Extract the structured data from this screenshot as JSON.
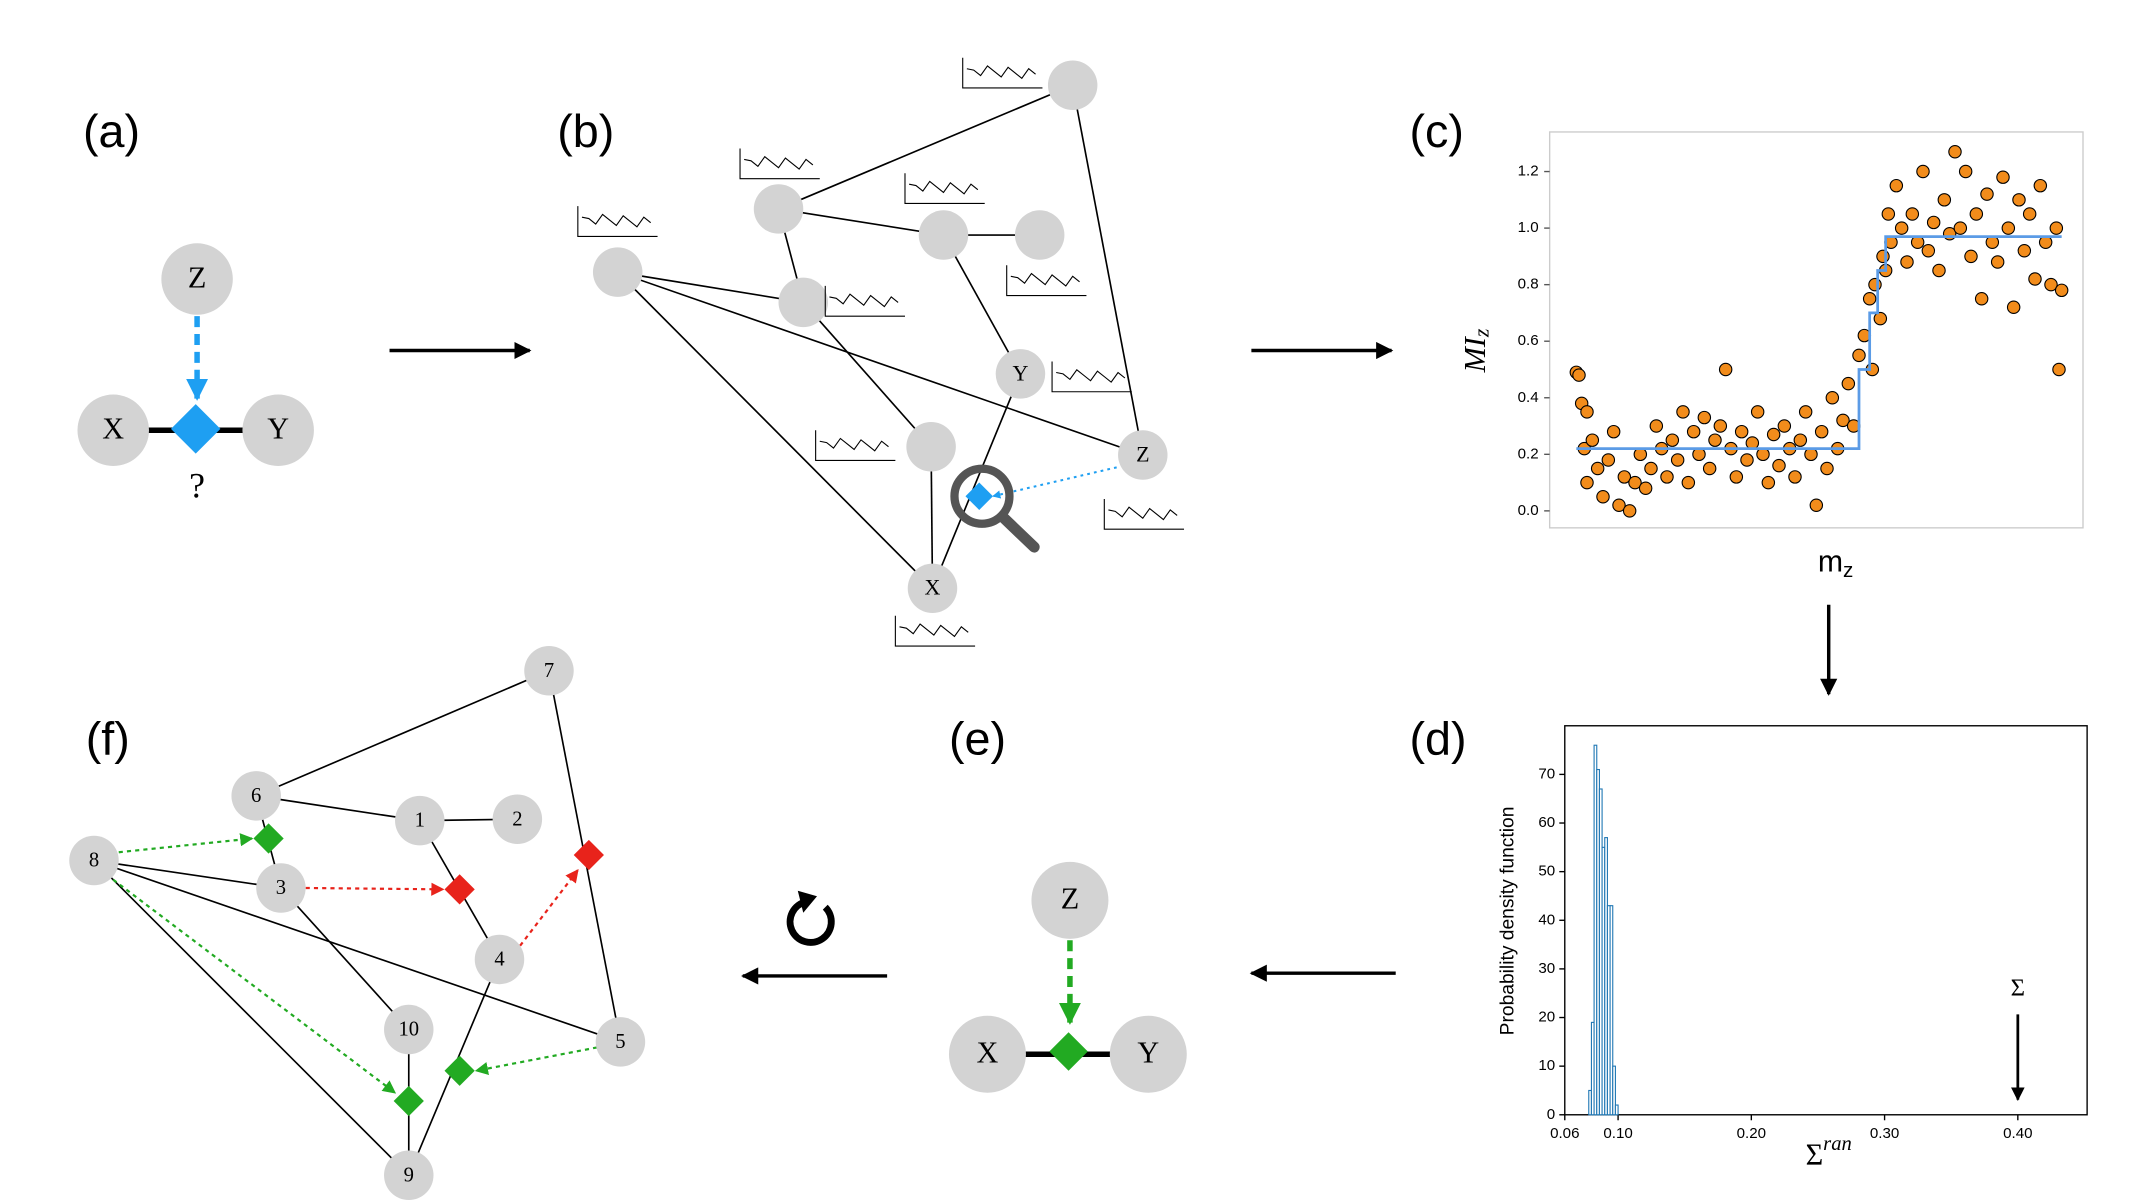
{
  "diagram": {
    "panel_labels": [
      "(a)",
      "(b)",
      "(c)",
      "(d)",
      "(e)",
      "(f)"
    ],
    "a_nodes": [
      "Z",
      "X",
      "Y"
    ],
    "a_question": "?",
    "b_nodes": [
      "Y",
      "Z",
      "X"
    ],
    "e_nodes": [
      "Z",
      "X",
      "Y"
    ],
    "f_nodes": [
      "1",
      "2",
      "3",
      "4",
      "5",
      "6",
      "7",
      "8",
      "9",
      "10"
    ]
  },
  "chart_data": [
    {
      "type": "scatter",
      "ylabel": "MI",
      "ylabel_sub": "z",
      "xlabel": "m",
      "xlabel_sub": "z",
      "color": "#f28c1b",
      "xlim": [
        0,
        1
      ],
      "ylim": [
        -0.06,
        1.34
      ],
      "yticks": [
        {
          "value": 0,
          "label": "0.0"
        },
        0.2,
        0.4,
        0.6,
        0.8,
        {
          "value": 1,
          "label": "1.0"
        },
        1.2
      ],
      "x": [
        0.05,
        0.055,
        0.06,
        0.07,
        0.065,
        0.07,
        0.08,
        0.09,
        0.1,
        0.11,
        0.12,
        0.13,
        0.14,
        0.15,
        0.16,
        0.17,
        0.18,
        0.19,
        0.2,
        0.21,
        0.22,
        0.23,
        0.24,
        0.25,
        0.26,
        0.27,
        0.28,
        0.29,
        0.3,
        0.31,
        0.32,
        0.33,
        0.34,
        0.35,
        0.36,
        0.37,
        0.38,
        0.39,
        0.4,
        0.41,
        0.42,
        0.43,
        0.44,
        0.45,
        0.46,
        0.47,
        0.48,
        0.49,
        0.5,
        0.51,
        0.52,
        0.53,
        0.54,
        0.55,
        0.56,
        0.57,
        0.58,
        0.59,
        0.6,
        0.605,
        0.61,
        0.62,
        0.625,
        0.63,
        0.635,
        0.64,
        0.65,
        0.66,
        0.67,
        0.68,
        0.69,
        0.7,
        0.71,
        0.72,
        0.73,
        0.74,
        0.75,
        0.76,
        0.77,
        0.78,
        0.79,
        0.8,
        0.81,
        0.82,
        0.83,
        0.84,
        0.85,
        0.86,
        0.87,
        0.88,
        0.89,
        0.9,
        0.91,
        0.92,
        0.93,
        0.94,
        0.95,
        0.955,
        0.96
      ],
      "values": [
        0.49,
        0.48,
        0.38,
        0.35,
        0.22,
        0.1,
        0.25,
        0.15,
        0.05,
        0.18,
        0.28,
        0.02,
        0.12,
        0,
        0.1,
        0.2,
        0.08,
        0.15,
        0.3,
        0.22,
        0.12,
        0.25,
        0.18,
        0.35,
        0.1,
        0.28,
        0.2,
        0.33,
        0.15,
        0.25,
        0.3,
        0.5,
        0.22,
        0.12,
        0.28,
        0.18,
        0.24,
        0.35,
        0.2,
        0.1,
        0.27,
        0.16,
        0.3,
        0.22,
        0.12,
        0.25,
        0.35,
        0.2,
        0.02,
        0.28,
        0.15,
        0.4,
        0.22,
        0.32,
        0.45,
        0.3,
        0.55,
        0.62,
        0.75,
        0.5,
        0.8,
        0.68,
        0.9,
        0.85,
        1.05,
        0.95,
        1.15,
        1,
        0.88,
        1.05,
        0.95,
        1.2,
        0.92,
        1.02,
        0.85,
        1.1,
        0.98,
        1.27,
        1,
        1.2,
        0.9,
        1.05,
        0.75,
        1.12,
        0.95,
        0.88,
        1.18,
        1,
        0.72,
        1.1,
        0.92,
        1.05,
        0.82,
        1.15,
        0.95,
        0.8,
        1,
        0.5,
        0.78
      ],
      "step_line": {
        "color": "#5b9be6",
        "x": [
          0.05,
          0.58,
          0.58,
          0.6,
          0.6,
          0.615,
          0.615,
          0.63,
          0.63,
          0.96
        ],
        "values": [
          0.22,
          0.22,
          0.5,
          0.5,
          0.7,
          0.7,
          0.85,
          0.85,
          0.97,
          0.97
        ]
      }
    },
    {
      "type": "histogram",
      "ylabel": "Probability density function",
      "xlabel": "Σ",
      "xlabel_sup": "ran",
      "color": "#1f77b4",
      "bins": [
        0.078,
        0.08,
        0.082,
        0.084,
        0.086,
        0.088,
        0.09,
        0.092,
        0.094,
        0.096,
        0.098,
        0.1
      ],
      "values": [
        5,
        19,
        76,
        71,
        67,
        55,
        57,
        43,
        43,
        10,
        2
      ],
      "xlim": [
        0.06,
        0.452
      ],
      "ylim": [
        0,
        80
      ],
      "xticks": [
        0.06,
        {
          "value": 0.1,
          "label": "0.10"
        },
        {
          "value": 0.2,
          "label": "0.20"
        },
        {
          "value": 0.3,
          "label": "0.30"
        },
        {
          "value": 0.4,
          "label": "0.40"
        }
      ],
      "yticks": [
        0,
        10,
        20,
        30,
        40,
        50,
        60,
        70
      ],
      "annotation": {
        "text": "Σ",
        "x": 0.4
      }
    }
  ]
}
